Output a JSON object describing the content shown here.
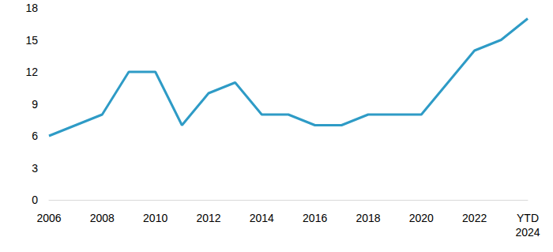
{
  "chart_data": {
    "type": "line",
    "categories": [
      "2006",
      null,
      "2008",
      null,
      "2010",
      null,
      "2012",
      null,
      "2014",
      null,
      "2016",
      null,
      "2018",
      null,
      "2020",
      null,
      "2022",
      null,
      "YTD\n2024"
    ],
    "values": [
      6,
      7,
      8,
      12,
      12,
      7,
      10,
      11,
      8,
      8,
      7,
      7,
      8,
      8,
      8,
      11,
      14,
      15,
      17
    ],
    "color": "#2e9bc6",
    "ylim": [
      0,
      18
    ],
    "yticks": [
      0,
      3,
      6,
      9,
      12,
      15,
      18
    ],
    "grid": false
  }
}
